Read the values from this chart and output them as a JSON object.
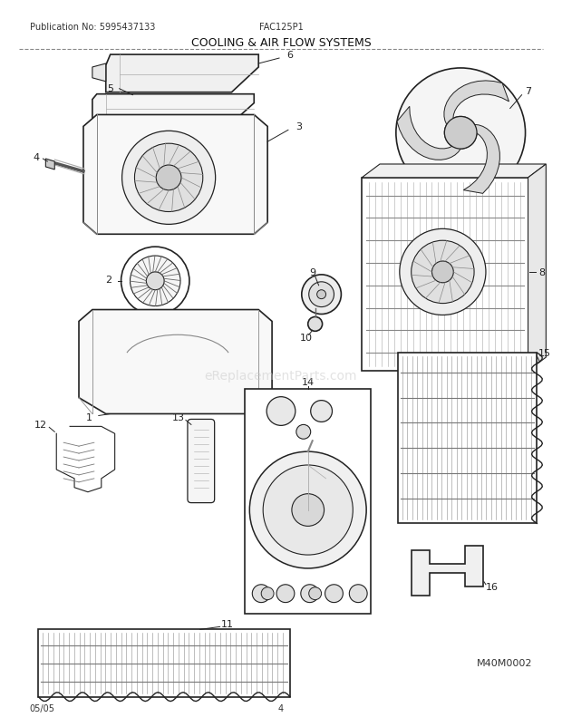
{
  "title": "COOLING & AIR FLOW SYSTEMS",
  "pub_no": "Publication No: 5995437133",
  "model": "FAC125P1",
  "date": "05/05",
  "page": "4",
  "watermark": "eReplacementParts.com",
  "diagram_id": "M40M0002",
  "bg_color": "#ffffff",
  "line_color": "#222222",
  "figsize": [
    6.2,
    8.03
  ],
  "dpi": 100
}
